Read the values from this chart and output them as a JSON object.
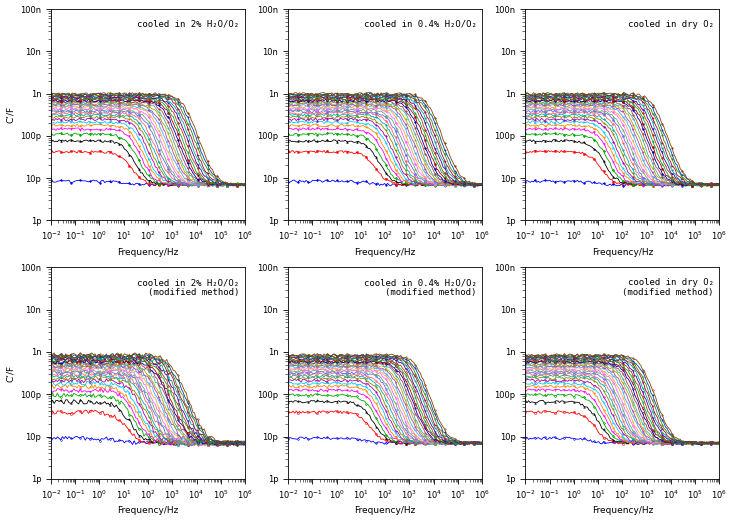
{
  "titles_top": [
    "cooled in 2% H₂O/O₂",
    "cooled in 0.4% H₂O/O₂",
    "cooled in dry O₂"
  ],
  "titles_bottom": [
    "cooled in 2% H₂O/O₂\n(modified method)",
    "cooled in 0.4% H₂O/O₂\n(modified method)",
    "cooled in dry O₂\n(modified method)"
  ],
  "ylabel": "C’/F",
  "xlabel": "Frequency/Hz",
  "ylim_log_min": -12,
  "ylim_log_max": -7,
  "xlim_log_min": -2,
  "xlim_log_max": 6,
  "n_curves": 30,
  "freq_min_log": -2,
  "freq_max_log": 6,
  "floor_cap": 7e-12,
  "colors": [
    "#0000ff",
    "#ff0000",
    "#000000",
    "#00aa00",
    "#ff00ff",
    "#ff8800",
    "#00ccff",
    "#aa00aa",
    "#888800",
    "#00aaaa",
    "#ff6666",
    "#6666ff",
    "#66aa66",
    "#ff66ff",
    "#ffaa44",
    "#44aaff",
    "#aa44aa",
    "#aaaa00",
    "#44aaaa",
    "#aa4444",
    "#0000aa",
    "#aa0000",
    "#00aa44",
    "#aa4400",
    "#4400aa",
    "#00aa88",
    "#aa0044",
    "#448800",
    "#0044aa",
    "#884400"
  ],
  "background_color": "#ffffff",
  "title_fontsize": 6.5,
  "axis_fontsize": 6.5,
  "tick_fontsize": 6,
  "linewidth": 0.6,
  "markersize": 1.2
}
